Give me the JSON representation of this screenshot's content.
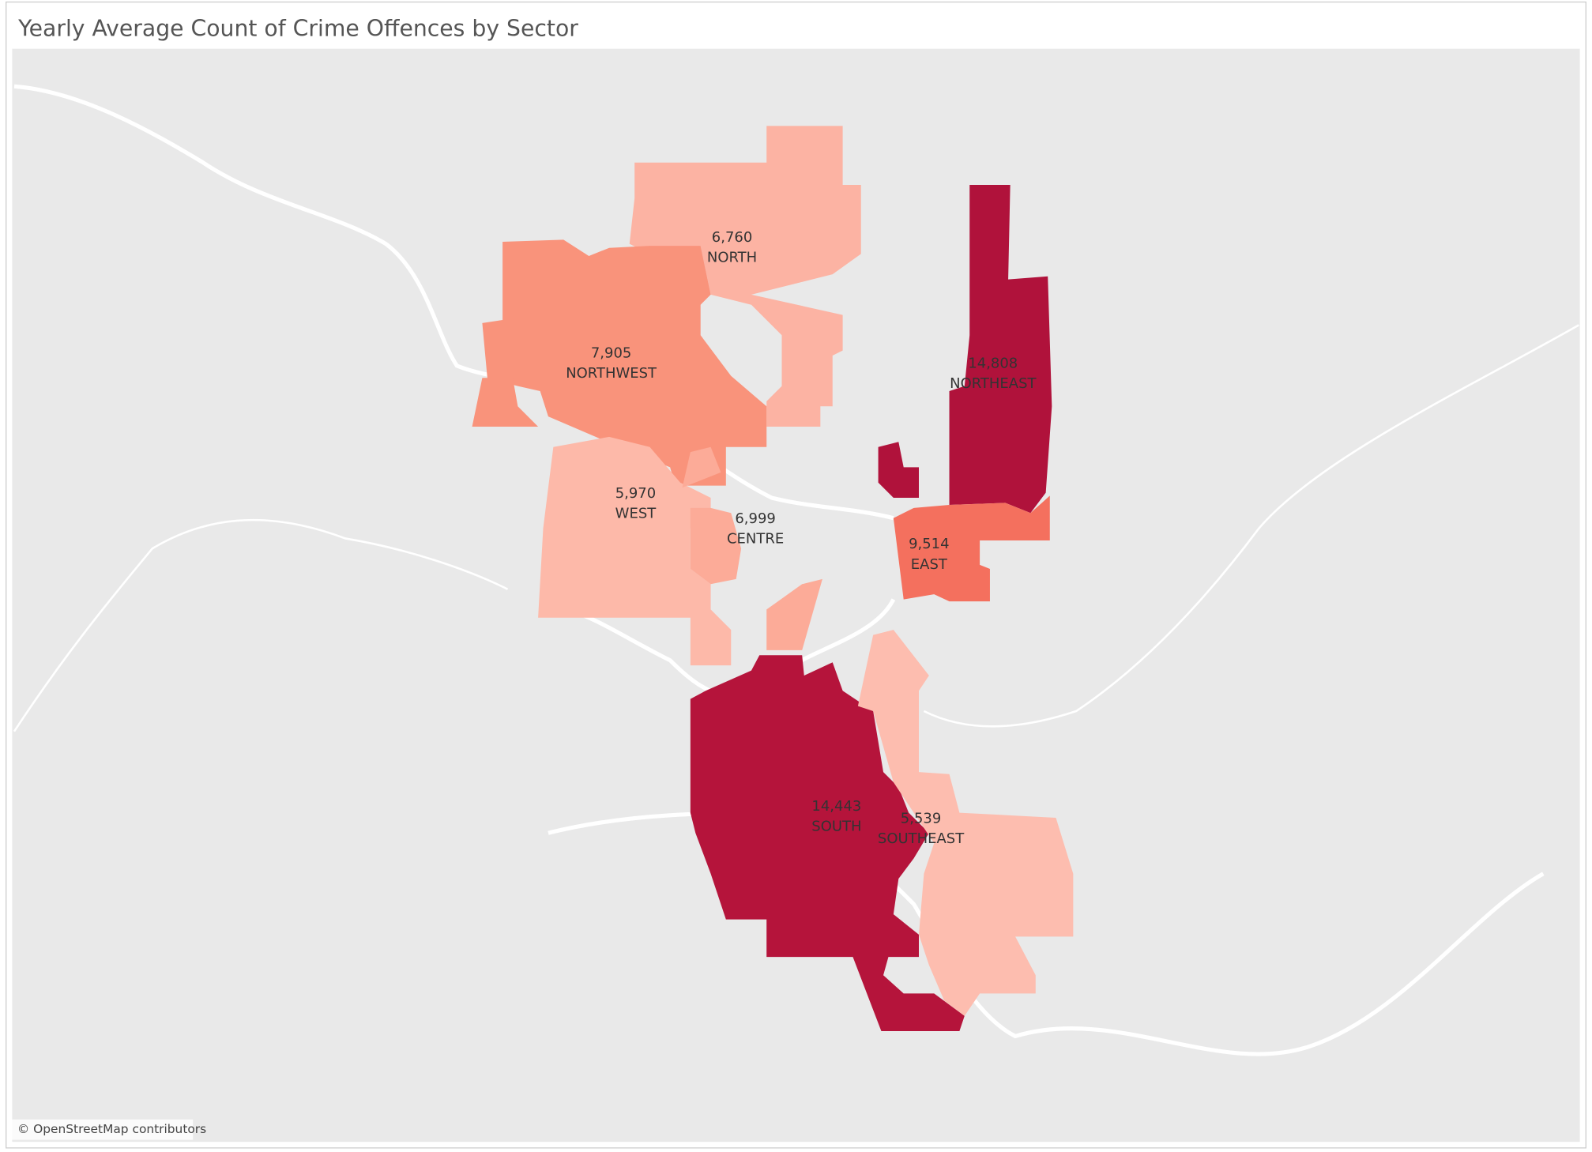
{
  "chart_data": {
    "type": "choropleth",
    "title": "Yearly Average Count of Crime Offences by Sector",
    "categories": [
      "NORTH",
      "NORTHWEST",
      "WEST",
      "CENTRE",
      "NORTHEAST",
      "EAST",
      "SOUTH",
      "SOUTHEAST"
    ],
    "values": [
      6760,
      7905,
      5970,
      6999,
      14808,
      9514,
      14443,
      5539
    ],
    "value_labels": [
      "6,760",
      "7,905",
      "5,970",
      "6,999",
      "14,808",
      "9,514",
      "14,443",
      "5,539"
    ],
    "colors": [
      "#fcb3a3",
      "#f9937b",
      "#fdb9a9",
      "#fcab98",
      "#b0123b",
      "#f4705e",
      "#b5143b",
      "#fdbdaf"
    ],
    "attribution": "© OpenStreetMap contributors"
  }
}
